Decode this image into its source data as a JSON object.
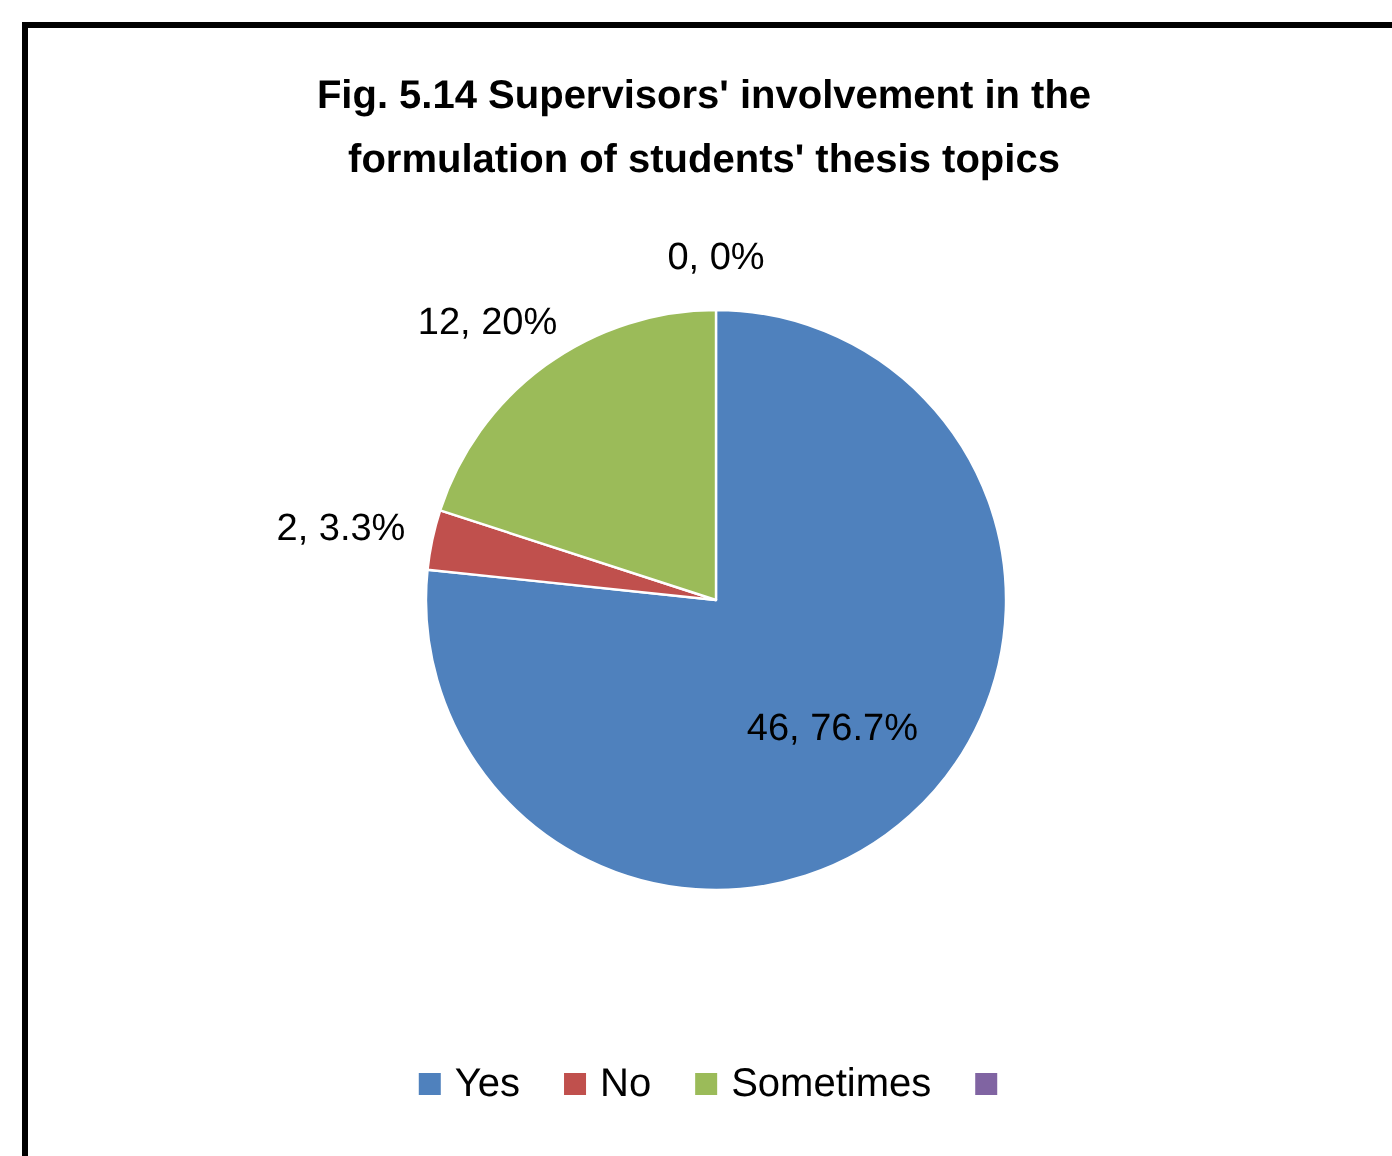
{
  "chart_data": {
    "type": "pie",
    "title": "Fig. 5.14 Supervisors' involvement in the formulation of students' thesis topics",
    "categories": [
      "Yes",
      "No",
      "Sometimes",
      null
    ],
    "values": [
      46,
      2,
      12,
      0
    ],
    "colors": [
      "#4f81bd",
      "#c0504d",
      "#9bbb59",
      "#8064a2"
    ],
    "value_labels": [
      "46, 76.7%",
      "2, 3.3%",
      "12, 20%",
      "0, 0%"
    ],
    "legend": "bottom"
  }
}
